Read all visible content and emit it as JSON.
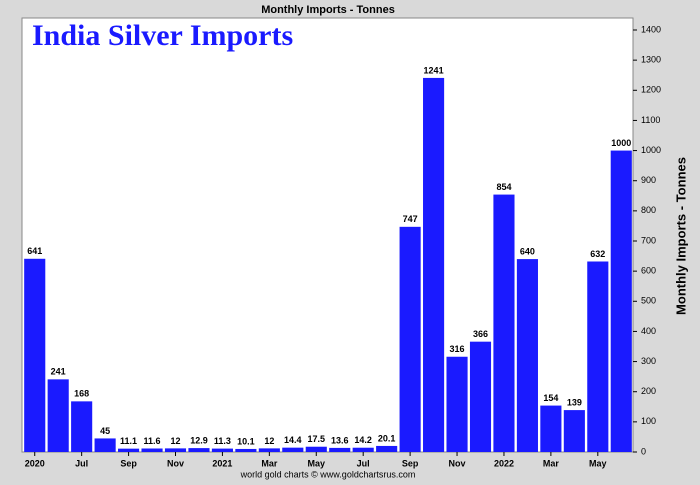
{
  "chart_data": {
    "type": "bar",
    "title": "Monthly Imports - Tonnes",
    "annotation": "India Silver Imports",
    "y_axis_label": "Monthly Imports - Tonnes",
    "footer": "world gold charts © www.goldchartsrus.com",
    "categories": [
      "2020",
      null,
      "Jul",
      null,
      "Sep",
      null,
      "Nov",
      null,
      "2021",
      null,
      "Mar",
      null,
      "May",
      null,
      "Jul",
      null,
      "Sep",
      null,
      "Nov",
      null,
      "2022",
      null,
      "Mar",
      null,
      "May",
      null
    ],
    "values": [
      641,
      241,
      168,
      45,
      11.1,
      11.6,
      12,
      12.9,
      11.3,
      10.1,
      12,
      14.4,
      17.5,
      13.6,
      14.2,
      20.1,
      747,
      1241,
      316,
      366,
      854,
      640,
      154,
      139,
      632,
      1000
    ],
    "color": "#1a1aff",
    "ylim": [
      0,
      1400
    ],
    "yticks": [
      0,
      100,
      200,
      300,
      400,
      500,
      600,
      700,
      800,
      900,
      1000,
      1100,
      1200,
      1300,
      1400
    ],
    "y_axis_side": "right",
    "grid": false
  }
}
